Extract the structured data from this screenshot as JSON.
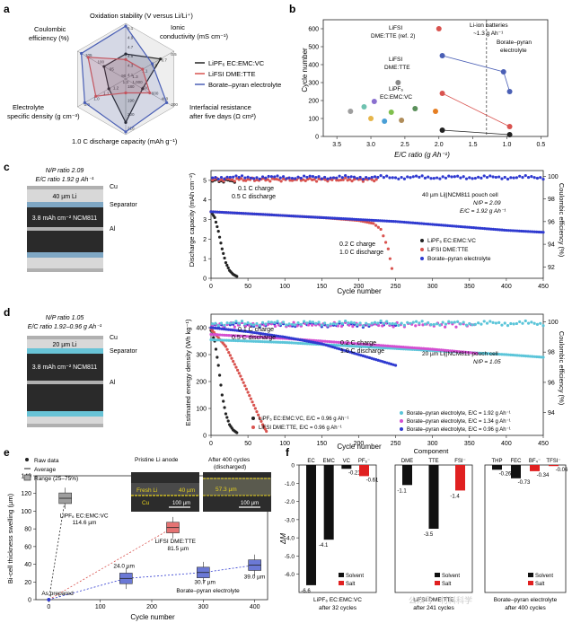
{
  "panel_letters": [
    "a",
    "b",
    "c",
    "d",
    "e",
    "f"
  ],
  "panel_a": {
    "axes": [
      {
        "label": "Oxidation stability (V versus Li/Li⁺)",
        "ticks": [
          "4.1",
          "4.3",
          "4.5",
          "4.7",
          "4.9",
          "5.1"
        ]
      },
      {
        "label": "Ionic conductivity (mS cm⁻¹)",
        "ticks": [
          "1.3",
          "1.1",
          "0.9",
          "0.7",
          "0.5"
        ]
      },
      {
        "label": "Interfacial resistance after five days (Ω cm²)",
        "ticks": [
          "1,000",
          "800",
          "600",
          "400",
          "200"
        ]
      },
      {
        "label": "1.0 C discharge capacity (mAh g⁻¹)",
        "ticks": [
          "180",
          "190",
          "200",
          "210"
        ]
      },
      {
        "label": "Electrolyte specific density (g cm⁻³)",
        "ticks": [
          "1.3",
          "1.2",
          "1.1",
          "1.0",
          "0.9"
        ]
      },
      {
        "label": "Coulombic efficiency (%)",
        "ticks": [
          "90",
          "95",
          "100",
          "105"
        ]
      }
    ],
    "legend": [
      "LiPF₆ EC:EMC:VC",
      "LiFSI DME:TTE",
      "Borate–pyran electrolyte"
    ],
    "series_colors": [
      "#222222",
      "#d9534f",
      "#4a5fb5"
    ],
    "series_values": [
      [
        0.45,
        0.72,
        0.35,
        0.78,
        0.35,
        0.45
      ],
      [
        0.35,
        0.35,
        0.5,
        0.25,
        0.62,
        0.78
      ],
      [
        0.95,
        0.55,
        0.85,
        0.95,
        0.85,
        0.92
      ]
    ]
  },
  "panel_b": {
    "xlabel": "E/C ratio (g Ah⁻¹)",
    "ylabel": "Cycle number",
    "xticks": [
      "3.5",
      "3.0",
      "2.5",
      "2.0",
      "1.5",
      "1.0",
      "0.5"
    ],
    "yticks": [
      "0",
      "100",
      "200",
      "300",
      "400",
      "500",
      "600"
    ],
    "points": [
      {
        "x": 3.3,
        "y": 140,
        "color": "#9e9e9e"
      },
      {
        "x": 3.1,
        "y": 165,
        "color": "#6fc2b0"
      },
      {
        "x": 2.95,
        "y": 195,
        "color": "#8a6fcf"
      },
      {
        "x": 3.0,
        "y": 100,
        "color": "#e6b54a"
      },
      {
        "x": 2.8,
        "y": 85,
        "color": "#4a9fd6"
      },
      {
        "x": 2.7,
        "y": 135,
        "color": "#7fbf4d"
      },
      {
        "x": 2.55,
        "y": 90,
        "color": "#b08d5a"
      },
      {
        "x": 2.6,
        "y": 300,
        "color": "#888888"
      },
      {
        "x": 2.35,
        "y": 155,
        "color": "#5a8f5a"
      },
      {
        "x": 2.05,
        "y": 140,
        "color": "#e67e22"
      },
      {
        "x": 2.0,
        "y": 600,
        "color": "#d9534f"
      },
      {
        "x": 1.95,
        "y": 450,
        "color": "#4a5fb5"
      },
      {
        "x": 1.95,
        "y": 240,
        "color": "#d9534f"
      },
      {
        "x": 1.95,
        "y": 35,
        "color": "#222222"
      },
      {
        "x": 1.05,
        "y": 360,
        "color": "#4a5fb5"
      },
      {
        "x": 0.96,
        "y": 250,
        "color": "#4a5fb5"
      },
      {
        "x": 0.96,
        "y": 55,
        "color": "#d9534f"
      },
      {
        "x": 0.96,
        "y": 10,
        "color": "#222222"
      }
    ],
    "annotations": [
      "Li-ion batteries ~1.3 g Ah⁻¹",
      "LiFSI DME:TTE (ref. 2)",
      "LiFSI DME:TTE",
      "LiPF₆ EC:EMC:VC",
      "Borate–pyran electrolyte"
    ]
  },
  "panel_c": {
    "np_label": "N/P ratio 2.09",
    "ec_label": "E/C ratio 1.92 g Ah⁻¹",
    "li_label": "40 µm Li",
    "cathode_label": "3.8 mAh cm⁻² NCM811",
    "side_labels": [
      "Cu",
      "Separator",
      "Al"
    ],
    "ylabel": "Discharge capacity (mAh cm⁻²)",
    "ylabel_right": "Coulombic efficiency (%)",
    "xlabel": "Cycle number",
    "xticks": [
      "0",
      "50",
      "100",
      "150",
      "200",
      "250",
      "300",
      "350",
      "400",
      "450"
    ],
    "yticks": [
      "0",
      "1",
      "2",
      "3",
      "4",
      "5"
    ],
    "yticks_right": [
      "92",
      "94",
      "96",
      "98",
      "100"
    ],
    "notes": [
      "0.1 C charge",
      "0.5 C discharge",
      "0.2 C charge",
      "1.0 C discharge"
    ],
    "cell_info": [
      "40 µm Li||NCM811 pouch cell",
      "N/P = 2.09",
      "E/C = 1.92 g Ah⁻¹"
    ],
    "legend": [
      "LiPF₆ EC:EMC:VC",
      "LiFSI DME:TTE",
      "Borate–pyran electrolyte"
    ]
  },
  "panel_d": {
    "np_label": "N/P ratio 1.05",
    "ec_label": "E/C ratio 1.92–0.96 g Ah⁻¹",
    "li_label": "20 µm Li",
    "cathode_label": "3.8 mAh cm⁻² NCM811",
    "side_labels": [
      "Cu",
      "Separator",
      "Al"
    ],
    "ylabel": "Estimated energy density (Wh kg⁻¹)",
    "ylabel_right": "Coulombic efficiency (%)",
    "xlabel": "Cycle number",
    "xticks": [
      "0",
      "50",
      "100",
      "150",
      "200",
      "250",
      "300",
      "350",
      "400",
      "450"
    ],
    "yticks": [
      "0",
      "100",
      "200",
      "300",
      "400"
    ],
    "yticks_right": [
      "94",
      "96",
      "98",
      "100"
    ],
    "notes": [
      "0.1 C charge",
      "0.5 C discharge",
      "0.2 C charge",
      "1.0 C discharge"
    ],
    "cell_info": [
      "20 µm Li||NCM811 pouch cell",
      "N/P = 1.05"
    ],
    "legend": [
      "LiPF₆ EC:EMC:VC, E/C = 0.96 g Ah⁻¹",
      "LiFSI DME:TTE, E/C = 0.96 g Ah⁻¹",
      "Borate–pyran electrolyte, E/C = 1.92 g Ah⁻¹",
      "Borate–pyran electrolyte, E/C = 1.34 g Ah⁻¹",
      "Borate–pyran electrolyte, E/C = 0.96 g Ah⁻¹"
    ]
  },
  "panel_e": {
    "legend": [
      "Raw data",
      "Average",
      "Range (25–75%)"
    ],
    "ylabel": "Bi-cell thickness swelling (µm)",
    "xlabel": "Cycle number",
    "xticks": [
      "0",
      "100",
      "200",
      "300",
      "400"
    ],
    "yticks": [
      "0",
      "20",
      "40",
      "60",
      "80",
      "100",
      "120",
      "140"
    ],
    "labels": [
      "As prepared",
      "LiPF₆ EC:EMC:VC",
      "114.6 µm",
      "LiFSI DME:TTE",
      "81.5 µm",
      "24.0 µm",
      "30.7 µm",
      "39.0 µm",
      "Borate–pyran electrolyte"
    ],
    "inset_titles": [
      "Pristine Li anode",
      "After 400 cycles (discharged)"
    ],
    "inset_labels": [
      "Fresh Li",
      "40 µm",
      "Cu",
      "57.3 µm",
      "100 µm",
      "100 µm"
    ]
  },
  "panel_f": {
    "title": "Component",
    "ylabel": "ΔM",
    "yticks": [
      "0",
      "-1.0",
      "-2.0",
      "-3.0",
      "-4.0",
      "-5.0",
      "-6.0"
    ],
    "groups": [
      {
        "caption1": "LiPF₆ EC:EMC:VC",
        "caption2": "after 32 cycles",
        "components": [
          "EC",
          "EMC",
          "VC",
          "PF₆⁻"
        ],
        "values": [
          -6.6,
          -4.1,
          -0.21,
          -0.61
        ],
        "types": [
          "solvent",
          "solvent",
          "solvent",
          "salt"
        ]
      },
      {
        "caption1": "LiFSI DME:TTE",
        "caption2": "after 241 cycles",
        "components": [
          "DME",
          "TTE",
          "FSI⁻"
        ],
        "values": [
          -1.1,
          -3.5,
          -1.4
        ],
        "types": [
          "solvent",
          "solvent",
          "salt"
        ]
      },
      {
        "caption1": "Borate–pyran electrolyte",
        "caption2": "after 400 cycles",
        "components": [
          "THP",
          "FEC",
          "BF₄⁻",
          "TFSI⁻"
        ],
        "values": [
          -0.26,
          -0.73,
          -0.34,
          -0.06
        ],
        "types": [
          "solvent",
          "solvent",
          "salt",
          "salt"
        ]
      }
    ],
    "legend": [
      "Solvent",
      "Salt"
    ]
  },
  "chart_data": [
    {
      "type": "radar",
      "title": "",
      "axes": [
        "Oxidation stability (V versus Li/Li⁺)",
        "Ionic conductivity (mS cm⁻¹)",
        "Interfacial resistance after five days (Ω cm²)",
        "1.0 C discharge capacity (mAh g⁻¹)",
        "Electrolyte specific density (g cm⁻³)",
        "Coulombic efficiency (%)"
      ],
      "series": [
        {
          "name": "LiPF₆ EC:EMC:VC"
        },
        {
          "name": "LiFSI DME:TTE"
        },
        {
          "name": "Borate–pyran electrolyte"
        }
      ]
    },
    {
      "type": "scatter",
      "xlabel": "E/C ratio (g Ah⁻¹)",
      "ylabel": "Cycle number",
      "xlim": [
        3.5,
        0.5
      ],
      "ylim": [
        0,
        600
      ]
    },
    {
      "type": "line",
      "xlabel": "Cycle number",
      "ylabel": "Discharge capacity (mAh cm⁻²)",
      "xlim": [
        0,
        450
      ],
      "ylim": [
        0,
        5.5
      ],
      "series": [
        {
          "name": "LiPF₆ EC:EMC:VC",
          "x": [
            0,
            5,
            10,
            15,
            20,
            25,
            30,
            35
          ],
          "y": [
            3.4,
            3.1,
            2.4,
            1.5,
            0.8,
            0.4,
            0.2,
            0.1
          ]
        },
        {
          "name": "LiFSI DME:TTE",
          "x": [
            0,
            50,
            100,
            150,
            200,
            220,
            230,
            240,
            245
          ],
          "y": [
            3.4,
            3.3,
            3.2,
            3.1,
            2.95,
            2.8,
            2.5,
            1.5,
            0.5
          ]
        },
        {
          "name": "Borate–pyran electrolyte",
          "x": [
            0,
            50,
            100,
            150,
            200,
            250,
            300,
            350,
            400,
            450
          ],
          "y": [
            3.4,
            3.3,
            3.2,
            3.1,
            3.0,
            2.9,
            2.75,
            2.6,
            2.45,
            2.35
          ]
        }
      ]
    },
    {
      "type": "line",
      "xlabel": "Cycle number",
      "ylabel": "Estimated energy density (Wh kg⁻¹)",
      "xlim": [
        0,
        450
      ],
      "ylim": [
        0,
        450
      ],
      "series": [
        {
          "name": "LiPF₆ EC:EMC:VC, E/C = 0.96 g Ah⁻¹",
          "x": [
            0,
            5,
            10,
            15,
            20,
            25,
            30,
            35
          ],
          "y": [
            390,
            350,
            260,
            150,
            80,
            40,
            20,
            10
          ]
        },
        {
          "name": "LiFSI DME:TTE, E/C = 0.96 g Ah⁻¹",
          "x": [
            0,
            20,
            40,
            60,
            70,
            75
          ],
          "y": [
            395,
            330,
            220,
            100,
            40,
            15
          ]
        },
        {
          "name": "Borate–pyran electrolyte, E/C = 1.92 g Ah⁻¹",
          "x": [
            0,
            100,
            200,
            300,
            400,
            450
          ],
          "y": [
            355,
            345,
            330,
            315,
            300,
            290
          ]
        },
        {
          "name": "Borate–pyran electrolyte, E/C = 1.34 g Ah⁻¹",
          "x": [
            0,
            100,
            200,
            300,
            360
          ],
          "y": [
            375,
            360,
            340,
            320,
            305
          ]
        },
        {
          "name": "Borate–pyran electrolyte, E/C = 0.96 g Ah⁻¹",
          "x": [
            0,
            50,
            100,
            150,
            200,
            250
          ],
          "y": [
            400,
            385,
            365,
            340,
            300,
            260
          ]
        }
      ]
    },
    {
      "type": "box",
      "xlabel": "Cycle number",
      "ylabel": "Bi-cell thickness swelling (µm)",
      "xlim": [
        -25,
        425
      ],
      "ylim": [
        0,
        140
      ],
      "series": [
        {
          "name": "LiPF₆ EC:EMC:VC",
          "x": 32,
          "average": 114.6
        },
        {
          "name": "LiFSI DME:TTE",
          "x": 241,
          "average": 81.5
        },
        {
          "name": "Borate–pyran electrolyte",
          "x": [
            0,
            150,
            300,
            400
          ],
          "average": [
            0,
            24.0,
            30.7,
            39.0
          ]
        }
      ]
    },
    {
      "type": "bar",
      "ylabel": "ΔM",
      "ylim": [
        -7,
        0
      ],
      "groups": [
        "LiPF₆ EC:EMC:VC",
        "LiFSI DME:TTE",
        "Borate–pyran electrolyte"
      ]
    }
  ]
}
